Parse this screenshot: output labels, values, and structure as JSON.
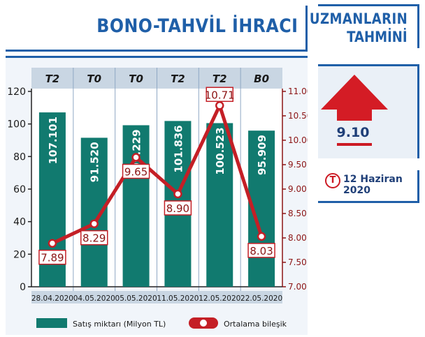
{
  "header": {
    "title": "BONO-TAHVİL İHRACI"
  },
  "side": {
    "title_line1": "UZMANLARIN",
    "title_line2": "TAHMİNİ",
    "forecast_value": "9.10",
    "date_badge": "T",
    "date": "12 Haziran 2020"
  },
  "colors": {
    "bar": "#117a6f",
    "line": "#c41f26",
    "accent": "#1f5fa8",
    "label_text": "#8c1414",
    "header_band": "#c9d6e3"
  },
  "chart_data": {
    "type": "bar",
    "categories": [
      "28.04.2020",
      "04.05.2020",
      "05.05.2020",
      "11.05.2020",
      "12.05.2020",
      "22.05.2020"
    ],
    "term_labels": [
      "T2",
      "T0",
      "T0",
      "T2",
      "T2",
      "B0"
    ],
    "series": [
      {
        "name": "Satış miktarı (Milyon TL)",
        "type": "bar",
        "axis": "left",
        "values": [
          107.101,
          91.52,
          99.229,
          101.836,
          100.523,
          95.909
        ],
        "labels": [
          "107.101",
          "91.520",
          "99.229",
          "101.836",
          "100.523",
          "95.909"
        ]
      },
      {
        "name": "Ortalama bileşik",
        "type": "line",
        "axis": "right",
        "values": [
          7.89,
          8.29,
          9.65,
          8.9,
          10.71,
          8.03
        ],
        "labels": [
          "7.89",
          "8.29",
          "9.65",
          "8.90",
          "10.71",
          "8.03"
        ]
      }
    ],
    "ylim_left": [
      0,
      120
    ],
    "yticks_left": [
      "0",
      "20",
      "40",
      "60",
      "80",
      "100",
      "120"
    ],
    "ylim_right": [
      7.0,
      11.0
    ],
    "yticks_right": [
      "7.00",
      "7.50",
      "8.00",
      "8.50",
      "9.00",
      "9.50",
      "10.00",
      "10.50",
      "11.00"
    ],
    "legend_position": "bottom"
  }
}
